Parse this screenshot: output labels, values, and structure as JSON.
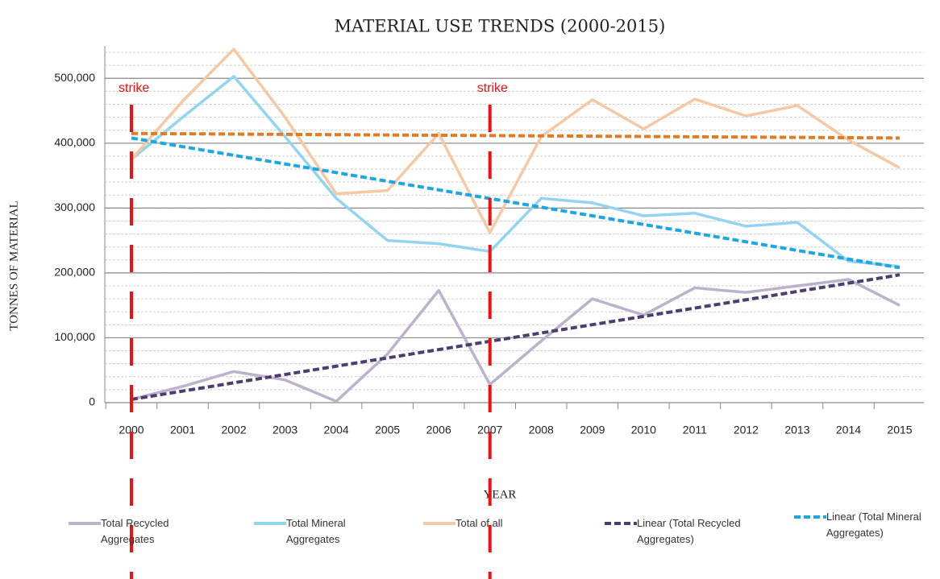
{
  "chart_data": {
    "type": "line",
    "title": "MATERIAL USE TRENDS (2000-2015)",
    "x_label": "YEAR",
    "y_label": "TONNES OF MATERIAL",
    "categories": [
      "2000",
      "2001",
      "2002",
      "2003",
      "2004",
      "2005",
      "2006",
      "2007",
      "2008",
      "2009",
      "2010",
      "2011",
      "2012",
      "2013",
      "2014",
      "2015"
    ],
    "series": [
      {
        "name": "Total Recycled Aggregates",
        "color": "#bcb2cc",
        "style": "solid",
        "values": [
          5000,
          25000,
          48000,
          35000,
          2000,
          75000,
          173000,
          28000,
          95000,
          160000,
          135000,
          177000,
          170000,
          180000,
          190000,
          150000
        ]
      },
      {
        "name": "Total Mineral Aggregates",
        "color": "#93d5f0",
        "style": "solid",
        "values": [
          375000,
          440000,
          503000,
          410000,
          315000,
          250000,
          245000,
          233000,
          315000,
          308000,
          288000,
          292000,
          272000,
          278000,
          218000,
          210000
        ]
      },
      {
        "name": "Total of all",
        "color": "#f6c8a4",
        "style": "solid",
        "values": [
          375000,
          465000,
          545000,
          440000,
          322000,
          327000,
          415000,
          262000,
          410000,
          467000,
          422000,
          468000,
          442000,
          458000,
          405000,
          362000
        ]
      },
      {
        "name": "Linear (Total Recycled Aggregates)",
        "color": "#4e3d70",
        "style": "dashed",
        "values": [
          5000,
          17800,
          30600,
          43400,
          56200,
          69000,
          81800,
          94600,
          107400,
          120200,
          133000,
          145800,
          158600,
          171400,
          184200,
          197000
        ]
      },
      {
        "name": "Linear (Total Mineral Aggregates)",
        "color": "#1ea6e2",
        "style": "dashed",
        "values": [
          408000,
          394667,
          381333,
          368000,
          354667,
          341333,
          328000,
          314667,
          301333,
          288000,
          274667,
          261333,
          248000,
          234667,
          221333,
          208000
        ]
      },
      {
        "color": "#e47b22",
        "style": "dashed",
        "values": [
          415000,
          414533,
          414067,
          413600,
          413133,
          412667,
          412200,
          411733,
          411267,
          410800,
          410333,
          409867,
          409400,
          408933,
          408467,
          408000
        ]
      }
    ],
    "annotations": [
      {
        "text": "strike",
        "x": "2000"
      },
      {
        "text": "strike",
        "x": "2007"
      }
    ],
    "ylim": [
      0,
      550000
    ],
    "yticks": [
      {
        "value": 0,
        "label": "0"
      },
      {
        "value": 100000,
        "label": "100,000"
      },
      {
        "value": 200000,
        "label": "200,000"
      },
      {
        "value": 300000,
        "label": "300,000"
      },
      {
        "value": 400000,
        "label": "400,000"
      },
      {
        "value": 500000,
        "label": "500,000"
      }
    ],
    "grid": true
  }
}
